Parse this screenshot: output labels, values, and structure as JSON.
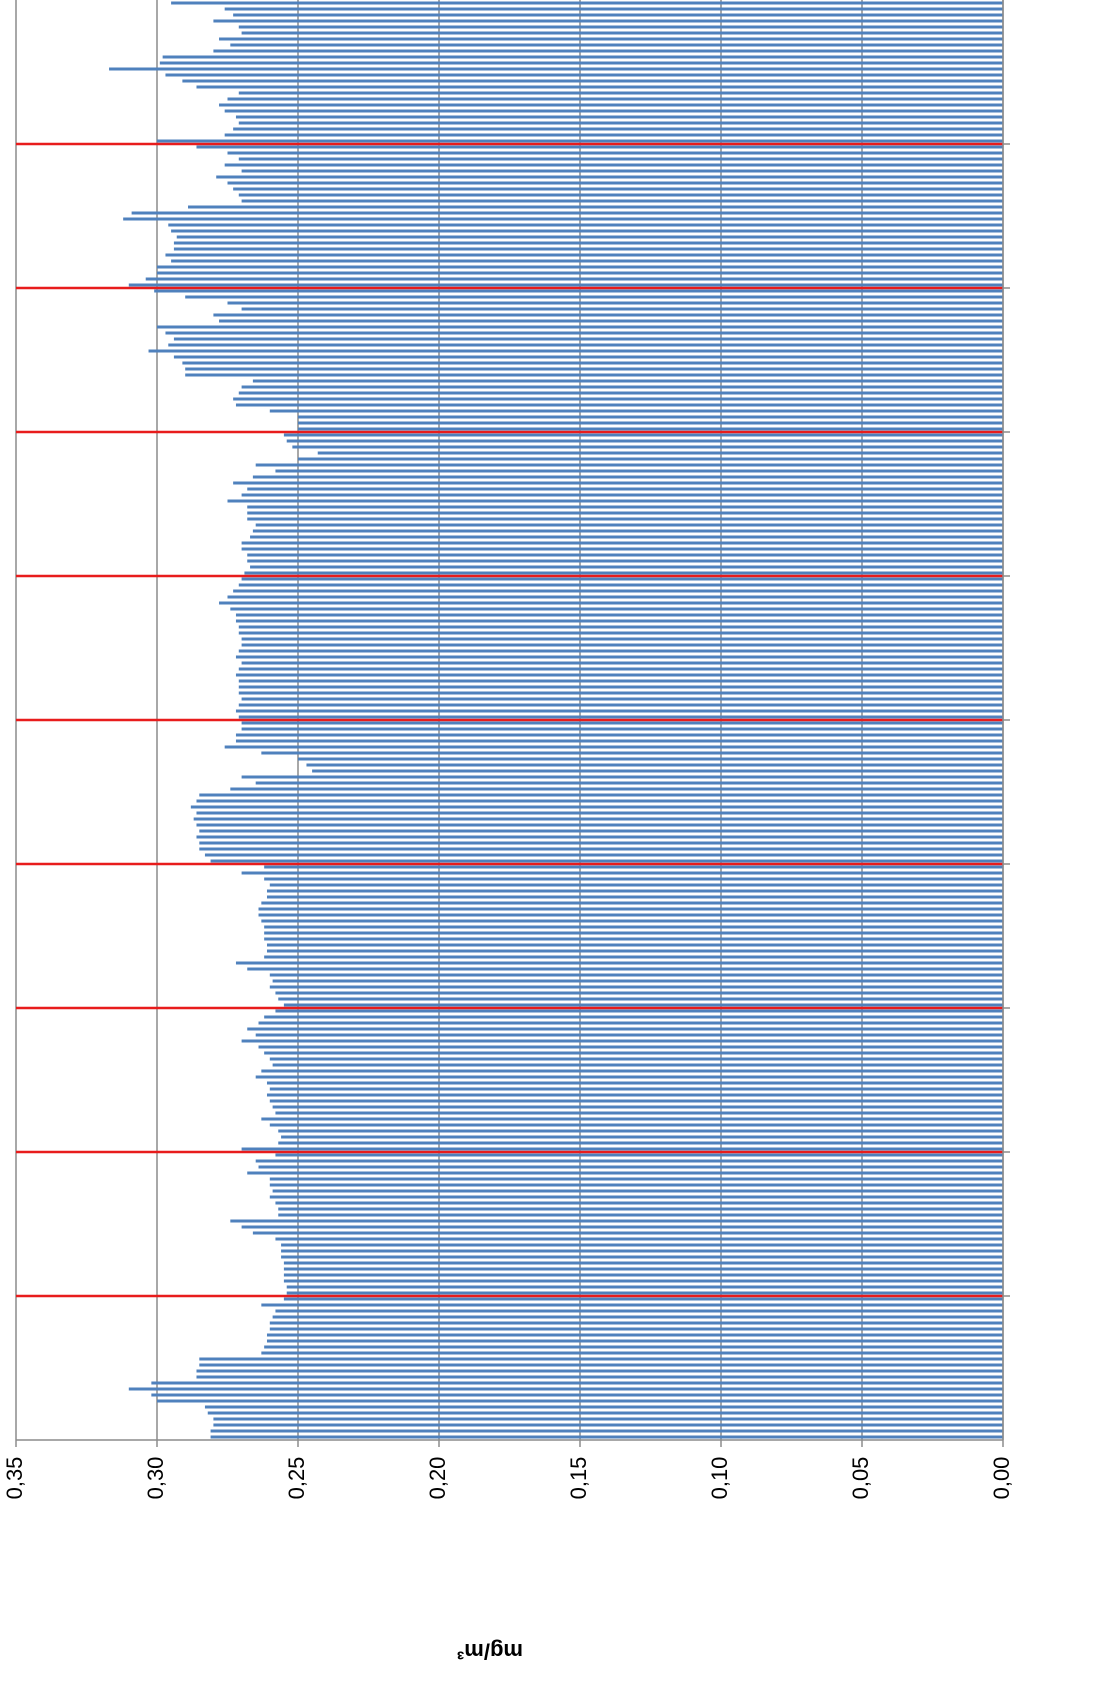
{
  "chart_data": {
    "type": "bar",
    "orientation": "horizontal",
    "y_label": "mg/m³",
    "color": "#4f81bd",
    "separator_color": "#e81c1c",
    "separator_interval": 24,
    "values": [
      0.281,
      0.281,
      0.28,
      0.28,
      0.282,
      0.283,
      0.3,
      0.302,
      0.31,
      0.302,
      0.286,
      0.286,
      0.285,
      0.285,
      0.263,
      0.262,
      0.261,
      0.261,
      0.26,
      0.26,
      0.259,
      0.258,
      0.263,
      0.255,
      0.254,
      0.254,
      0.255,
      0.255,
      0.255,
      0.255,
      0.256,
      0.256,
      0.256,
      0.258,
      0.266,
      0.27,
      0.274,
      0.257,
      0.257,
      0.258,
      0.26,
      0.259,
      0.26,
      0.26,
      0.268,
      0.264,
      0.265,
      0.258,
      0.27,
      0.257,
      0.256,
      0.257,
      0.26,
      0.263,
      0.258,
      0.259,
      0.26,
      0.261,
      0.26,
      0.261,
      0.265,
      0.263,
      0.259,
      0.26,
      0.262,
      0.264,
      0.27,
      0.265,
      0.268,
      0.264,
      0.262,
      0.258,
      0.255,
      0.257,
      0.258,
      0.26,
      0.259,
      0.26,
      0.268,
      0.272,
      0.262,
      0.261,
      0.261,
      0.262,
      0.262,
      0.262,
      0.263,
      0.264,
      0.264,
      0.263,
      0.261,
      0.261,
      0.26,
      0.262,
      0.27,
      0.262,
      0.281,
      0.283,
      0.285,
      0.285,
      0.286,
      0.285,
      0.286,
      0.287,
      0.286,
      0.288,
      0.286,
      0.285,
      0.274,
      0.265,
      0.27,
      0.245,
      0.247,
      0.25,
      0.263,
      0.276,
      0.272,
      0.272,
      0.27,
      0.27,
      0.271,
      0.272,
      0.271,
      0.27,
      0.271,
      0.271,
      0.271,
      0.272,
      0.271,
      0.27,
      0.272,
      0.271,
      0.27,
      0.27,
      0.271,
      0.271,
      0.272,
      0.272,
      0.274,
      0.278,
      0.275,
      0.273,
      0.271,
      0.27,
      0.269,
      0.267,
      0.268,
      0.268,
      0.27,
      0.27,
      0.267,
      0.266,
      0.265,
      0.268,
      0.268,
      0.268,
      0.275,
      0.27,
      0.268,
      0.273,
      0.266,
      0.258,
      0.265,
      0.25,
      0.243,
      0.252,
      0.254,
      0.255,
      0.25,
      0.25,
      0.25,
      0.26,
      0.272,
      0.273,
      0.271,
      0.27,
      0.266,
      0.29,
      0.29,
      0.291,
      0.294,
      0.303,
      0.296,
      0.294,
      0.297,
      0.3,
      0.278,
      0.28,
      0.27,
      0.275,
      0.29,
      0.301,
      0.31,
      0.304,
      0.3,
      0.3,
      0.295,
      0.297,
      0.294,
      0.294,
      0.293,
      0.295,
      0.296,
      0.312,
      0.309,
      0.289,
      0.27,
      0.271,
      0.273,
      0.275,
      0.279,
      0.27,
      0.276,
      0.271,
      0.275,
      0.286,
      0.3,
      0.276,
      0.273,
      0.271,
      0.272,
      0.276,
      0.278,
      0.275,
      0.271,
      0.286,
      0.291,
      0.297,
      0.317,
      0.299,
      0.298,
      0.28,
      0.274,
      0.278,
      0.27,
      0.271,
      0.28,
      0.273,
      0.276,
      0.295
    ],
    "ylim": [
      0,
      0.35
    ],
    "yticks": [
      {
        "value": 0,
        "label": "0,00"
      },
      {
        "value": 0.05,
        "label": "0,05"
      },
      {
        "value": 0.1,
        "label": "0,10"
      },
      {
        "value": 0.15,
        "label": "0,15"
      },
      {
        "value": 0.2,
        "label": "0,20"
      },
      {
        "value": 0.25,
        "label": "0,25"
      },
      {
        "value": 0.3,
        "label": "0,30"
      },
      {
        "value": 0.35,
        "label": "0,35"
      }
    ],
    "grid": true
  }
}
